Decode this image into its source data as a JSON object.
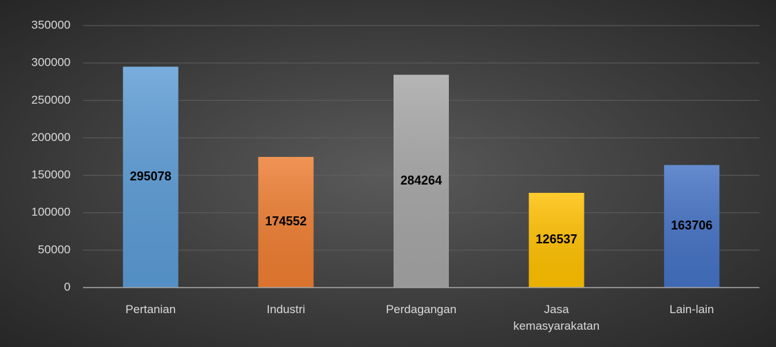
{
  "chart_data": {
    "type": "bar",
    "categories": [
      "Pertanian",
      "Industri",
      "Perdagangan",
      "Jasa kemasyarakatan",
      "Lain-lain"
    ],
    "values": [
      295078,
      174552,
      284264,
      126537,
      163706
    ],
    "colors": [
      "#5b9bd5",
      "#ed7d31",
      "#a5a5a5",
      "#ffc000",
      "#4472c4"
    ],
    "ylim": [
      0,
      350000
    ],
    "yticks": [
      0,
      50000,
      100000,
      150000,
      200000,
      250000,
      300000,
      350000
    ],
    "grid": true,
    "data_labels": true
  }
}
